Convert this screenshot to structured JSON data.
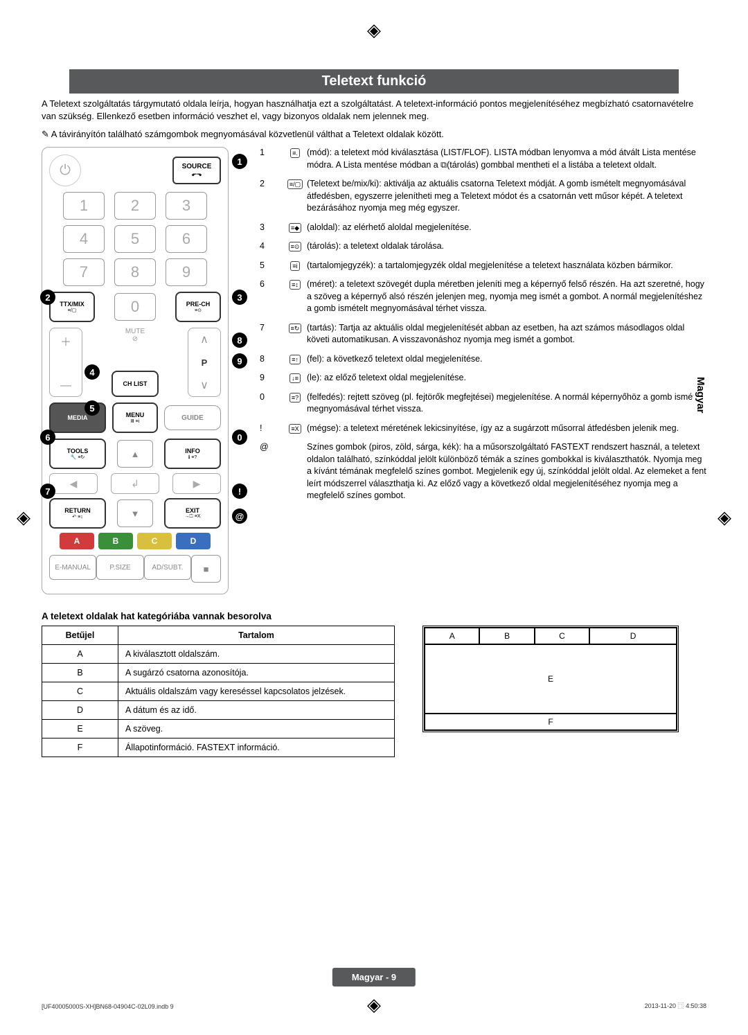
{
  "registration_mark": "◈",
  "title": "Teletext funkció",
  "intro": "A Teletext szolgáltatás tárgymutató oldala leírja, hogyan használhatja ezt a szolgáltatást. A teletext-információ pontos megjelenítéséhez megbízható csatornavételre van szükség. Ellenkező esetben információ veszhet el, vagy bizonyos oldalak nem jelennek meg.",
  "note": "A távirányítón található számgombok megnyomásával közvetlenül válthat a Teletext oldalak között.",
  "remote": {
    "source": "SOURCE",
    "source_sub": "⬐⬎",
    "nums": [
      "1",
      "2",
      "3",
      "4",
      "5",
      "6",
      "7",
      "8",
      "9",
      "0"
    ],
    "ttxmix": "TTX/MIX",
    "prech": "PRE-CH",
    "mute": "MUTE",
    "chlist": "CH LIST",
    "media": "MEDIA",
    "menu": "MENU",
    "guide": "GUIDE",
    "tools": "TOOLS",
    "info": "INFO",
    "return": "RETURN",
    "exit": "EXIT",
    "p": "P",
    "bottom": {
      "a": "E-MANUAL",
      "b": "P.SIZE",
      "c": "AD/SUBT.",
      "d": "■"
    },
    "color_labels": [
      "A",
      "B",
      "C",
      "D"
    ],
    "colors": [
      "#d23b3b",
      "#3a8f3a",
      "#d8bf3e",
      "#3a6fbf"
    ],
    "callouts": [
      "1",
      "2",
      "3",
      "4",
      "5",
      "6",
      "7",
      "8",
      "9",
      "0",
      "!",
      "@"
    ]
  },
  "items": [
    {
      "n": "1",
      "ico": "≡.",
      "txt": "(mód): a teletext mód kiválasztása (LIST/FLOF). LISTA módban lenyomva a mód átvált Lista mentése módra. A Lista mentése módban a ⧉(tárolás) gombbal mentheti el a listába a teletext oldalt."
    },
    {
      "n": "2",
      "ico": "≡/▢",
      "txt": "(Teletext be/mix/ki): aktiválja az aktuális csatorna Teletext módját. A gomb ismételt megnyomásával átfedésben, egyszerre jelenítheti meg a Teletext módot és a csatornán vett műsor képét. A teletext bezárásához nyomja meg még egyszer."
    },
    {
      "n": "3",
      "ico": "≡◆",
      "txt": "(aloldal): az elérhető aloldal megjelenítése."
    },
    {
      "n": "4",
      "ico": "≡⊙",
      "txt": "(tárolás): a teletext oldalak tárolása."
    },
    {
      "n": "5",
      "ico": "≡i",
      "txt": "(tartalomjegyzék): a tartalomjegyzék oldal megjelenítése a teletext használata közben bármikor."
    },
    {
      "n": "6",
      "ico": "≡↕",
      "txt": "(méret): a teletext szövegét dupla méretben jeleníti meg a képernyő felső részén. Ha azt szeretné, hogy a szöveg a képernyő alsó részén jelenjen meg, nyomja meg ismét a gombot. A normál megjelenítéshez a gomb ismételt megnyomásával térhet vissza."
    },
    {
      "n": "7",
      "ico": "≡↻",
      "txt": "(tartás): Tartja az aktuális oldal megjelenítését abban az esetben, ha azt számos másodlagos oldal követi automatikusan. A visszavonáshoz nyomja meg ismét a gombot."
    },
    {
      "n": "8",
      "ico": "≡↑",
      "txt": "(fel): a következő teletext oldal megjelenítése."
    },
    {
      "n": "9",
      "ico": "↓≡",
      "txt": "(le): az előző teletext oldal megjelenítése."
    },
    {
      "n": "0",
      "ico": "≡?",
      "txt": "(felfedés): rejtett szöveg (pl. fejtörők megfejtései) megjelenítése. A normál képernyőhöz a gomb ismételt megnyomásával térhet vissza."
    },
    {
      "n": "!",
      "ico": "≡X",
      "txt": "(mégse): a teletext méretének lekicsinyítése, így az a sugárzott műsorral átfedésben jelenik meg."
    },
    {
      "n": "@",
      "ico": "",
      "txt": "Színes gombok (piros, zöld, sárga, kék): ha a műsorszolgáltató FASTEXT rendszert használ, a teletext oldalon található, színkóddal jelölt különböző témák a színes gombokkal is kiválaszthatók. Nyomja meg a kívánt témának megfelelő színes gombot. Megjelenik egy új, színkóddal jelölt oldal. Az elemeket a fent leírt módszerrel választhatja ki. Az előző vagy a következő oldal megjelenítéséhez nyomja meg a megfelelő színes gombot."
    }
  ],
  "side_tab": "Magyar",
  "table_title": "A teletext oldalak hat kategóriába vannak besorolva",
  "table": {
    "head": [
      "Betűjel",
      "Tartalom"
    ],
    "rows": [
      [
        "A",
        "A kiválasztott oldalszám."
      ],
      [
        "B",
        "A sugárzó csatorna azonosítója."
      ],
      [
        "C",
        "Aktuális oldalszám vagy kereséssel kapcsolatos jelzések."
      ],
      [
        "D",
        "A dátum és az idő."
      ],
      [
        "E",
        "A szöveg."
      ],
      [
        "F",
        "Állapotinformáció. FASTEXT információ."
      ]
    ]
  },
  "diagram": {
    "top": [
      "A",
      "B",
      "C",
      "D"
    ],
    "mid": "E",
    "bot": "F"
  },
  "footer": "Magyar - 9",
  "tiny_left": "[UF40005000S-XH]BN68-04904C-02L09.indb   9",
  "tiny_right": "2013-11-20   ⿹ 4:50:38"
}
